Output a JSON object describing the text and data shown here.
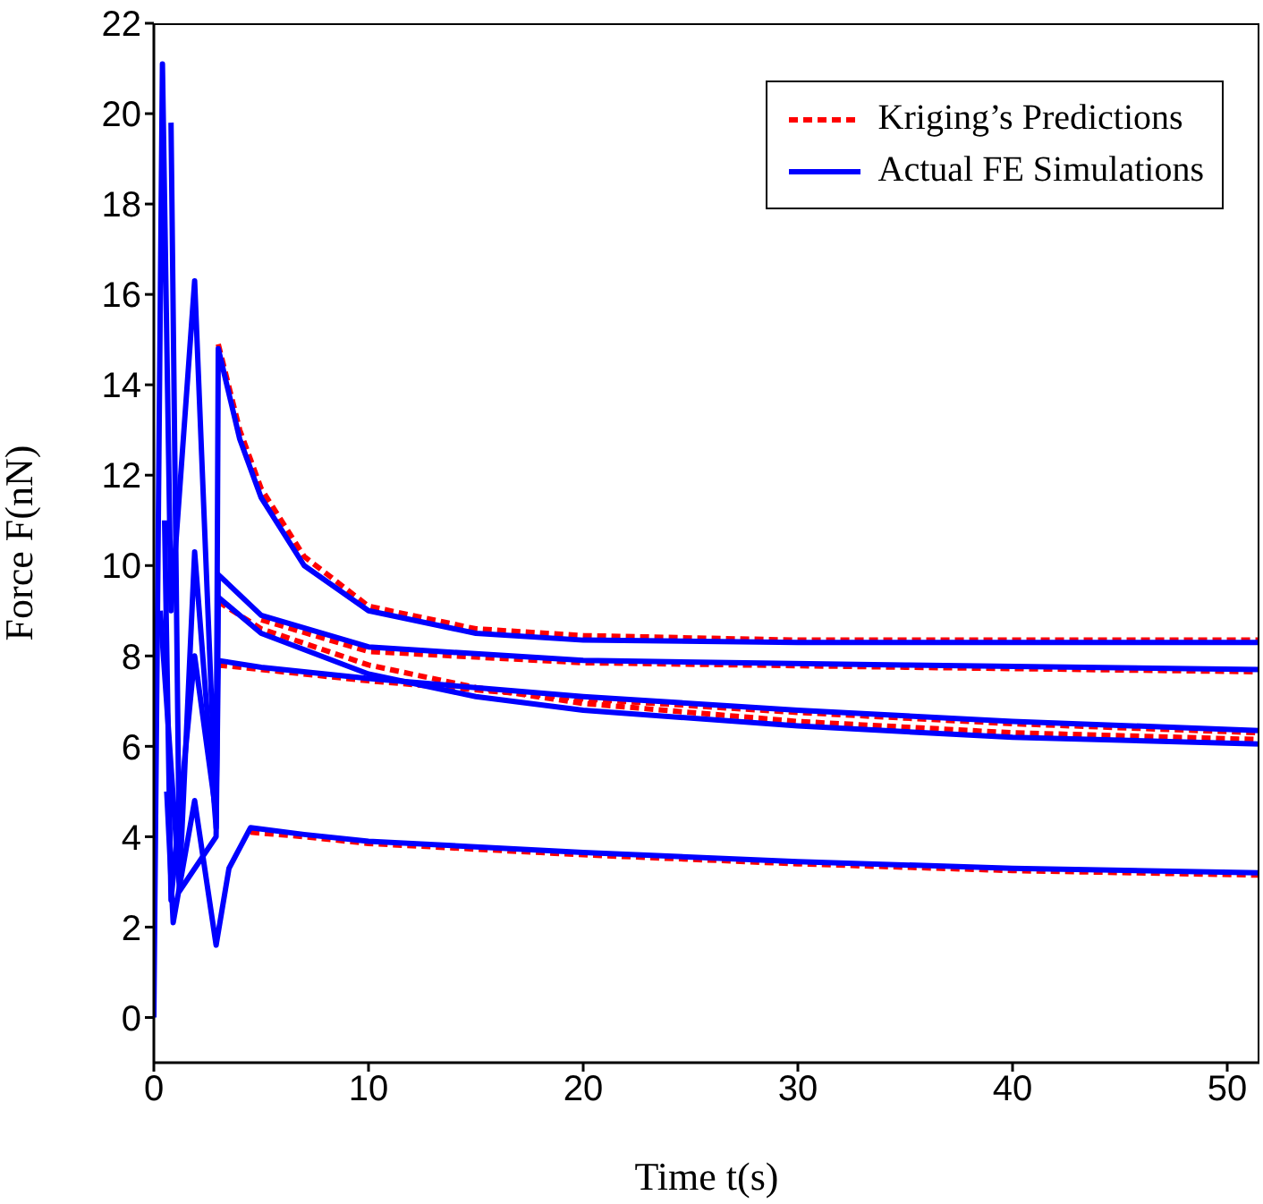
{
  "chart_data": {
    "type": "line",
    "xlabel": "Time t(s)",
    "ylabel": "Force F(nN)",
    "xlim": [
      0,
      51.5
    ],
    "ylim": [
      -1,
      22
    ],
    "xticks": [
      0,
      10,
      20,
      30,
      40,
      50
    ],
    "yticks": [
      0,
      2,
      4,
      6,
      8,
      10,
      12,
      14,
      16,
      18,
      20,
      22
    ],
    "legend": "top right",
    "grid": false,
    "series": [
      {
        "name": "Kriging’s Predictions",
        "color": "#ff0000",
        "line_style": "dashed",
        "x": [
          3,
          4,
          5,
          7,
          10,
          15,
          20,
          30,
          51.5
        ],
        "values": [
          14.9,
          13,
          11.7,
          10.2,
          9.1,
          8.6,
          8.45,
          8.35,
          8.35
        ]
      },
      {
        "color": "#ff0000",
        "line_style": "dashed",
        "x": [
          5,
          10,
          20,
          35,
          51.5
        ],
        "values": [
          8.8,
          8.1,
          7.85,
          7.75,
          7.65
        ]
      },
      {
        "color": "#ff0000",
        "line_style": "dashed",
        "x": [
          3,
          5,
          10,
          15,
          20,
          30,
          40,
          51.5
        ],
        "values": [
          9.2,
          8.6,
          7.8,
          7.3,
          6.95,
          6.55,
          6.3,
          6.15
        ]
      },
      {
        "color": "#ff0000",
        "line_style": "dashed",
        "x": [
          3,
          5,
          10,
          20,
          30,
          40,
          51.5
        ],
        "values": [
          7.8,
          7.7,
          7.45,
          7.05,
          6.75,
          6.5,
          6.3
        ]
      },
      {
        "color": "#ff0000",
        "line_style": "dashed",
        "x": [
          4.5,
          7,
          10,
          20,
          30,
          40,
          51.5
        ],
        "values": [
          4.1,
          4,
          3.85,
          3.6,
          3.4,
          3.25,
          3.15
        ]
      },
      {
        "name": "Actual FE Simulations",
        "color": "#0000ff",
        "line_style": "solid",
        "x": [
          0,
          0.4,
          0.8,
          1.9,
          2.9,
          3,
          4,
          5,
          7,
          10,
          15,
          20,
          30,
          51.5
        ],
        "values": [
          0,
          21.1,
          9,
          16.3,
          4.5,
          14.8,
          12.8,
          11.5,
          10,
          9,
          8.5,
          8.35,
          8.3,
          8.3
        ]
      },
      {
        "color": "#0000ff",
        "line_style": "solid",
        "x": [
          0.8,
          1.2,
          1.9,
          2.9,
          3,
          5,
          10,
          20,
          35,
          51.5
        ],
        "values": [
          19.8,
          3,
          10.3,
          4.2,
          9.8,
          8.9,
          8.2,
          7.9,
          7.8,
          7.7
        ]
      },
      {
        "color": "#0000ff",
        "line_style": "solid",
        "x": [
          0.5,
          0.8,
          1.9,
          2.9,
          3,
          5,
          10,
          15,
          20,
          30,
          40,
          51.5
        ],
        "values": [
          11,
          2.6,
          8,
          4.5,
          9.3,
          8.5,
          7.6,
          7.1,
          6.8,
          6.45,
          6.2,
          6.05
        ]
      },
      {
        "color": "#0000ff",
        "line_style": "solid",
        "x": [
          0.3,
          1.2,
          2.9,
          3,
          5,
          10,
          20,
          30,
          40,
          51.5
        ],
        "values": [
          9,
          2.8,
          4,
          7.9,
          7.75,
          7.5,
          7.1,
          6.8,
          6.55,
          6.35
        ]
      },
      {
        "color": "#0000ff",
        "line_style": "solid",
        "x": [
          0.6,
          0.9,
          1.9,
          2.9,
          3.5,
          4.5,
          7,
          10,
          20,
          30,
          40,
          51.5
        ],
        "values": [
          5,
          2.1,
          4.8,
          1.6,
          3.3,
          4.2,
          4.05,
          3.9,
          3.65,
          3.45,
          3.3,
          3.2
        ]
      }
    ]
  }
}
